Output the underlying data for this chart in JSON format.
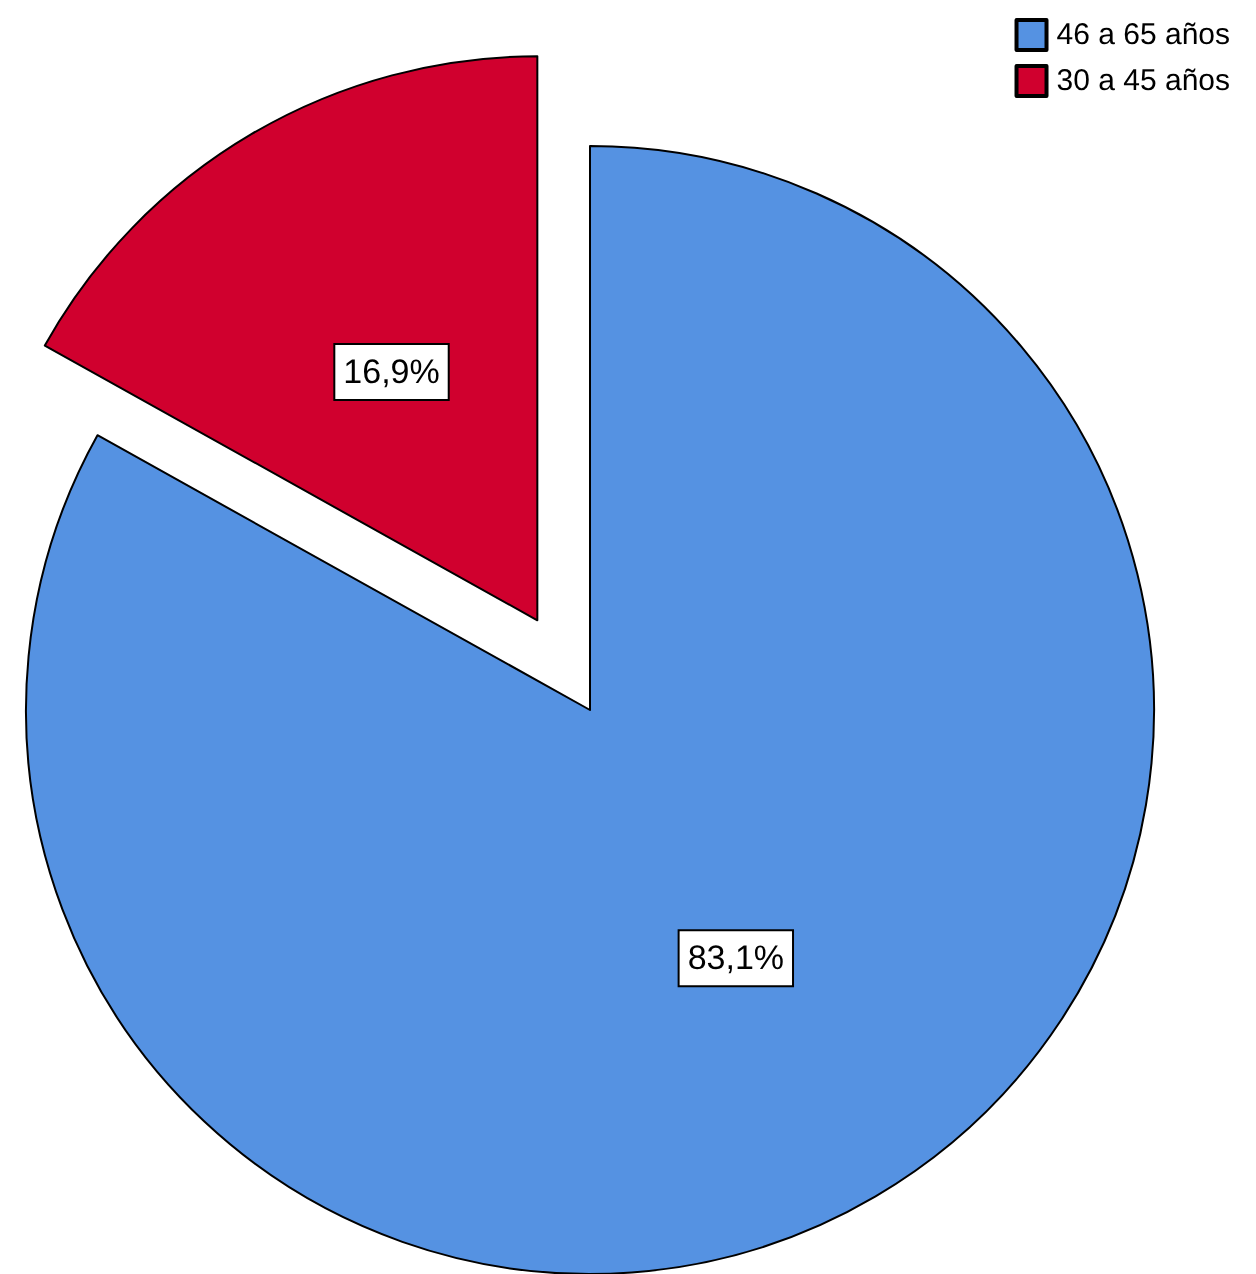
{
  "chart_data": {
    "type": "pie",
    "categories": [
      "46 a 65 años",
      "30 a 45 años"
    ],
    "values": [
      83.1,
      16.9
    ],
    "colors": [
      "#5592e2",
      "#d0002e"
    ],
    "value_labels": [
      "83,1%",
      "16,9%"
    ],
    "legend": "top right"
  }
}
